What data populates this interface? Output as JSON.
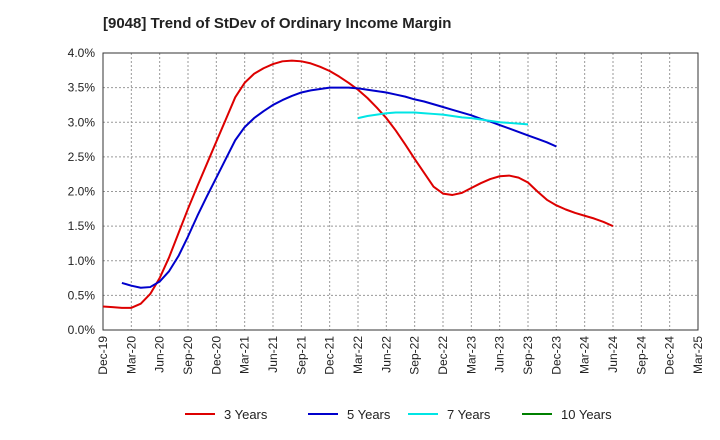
{
  "chart_data": {
    "type": "line",
    "title": "[9048]  Trend of StDev of Ordinary Income Margin",
    "xlabel": "",
    "ylabel": "",
    "ylim": [
      0,
      4.0
    ],
    "y_ticks": [
      0,
      0.5,
      1.0,
      1.5,
      2.0,
      2.5,
      3.0,
      3.5,
      4.0
    ],
    "y_tick_labels": [
      "0.0%",
      "0.5%",
      "1.0%",
      "1.5%",
      "2.0%",
      "2.5%",
      "3.0%",
      "3.5%",
      "4.0%"
    ],
    "x_tick_labels": [
      "Dec-19",
      "Mar-20",
      "Jun-20",
      "Sep-20",
      "Dec-20",
      "Mar-21",
      "Jun-21",
      "Sep-21",
      "Dec-21",
      "Mar-22",
      "Jun-22",
      "Sep-22",
      "Dec-22",
      "Mar-23",
      "Jun-23",
      "Sep-23",
      "Dec-23",
      "Mar-24",
      "Jun-24",
      "Sep-24",
      "Dec-24",
      "Mar-25"
    ],
    "grid": true,
    "legend_position": "bottom",
    "series": [
      {
        "name": "3 Years",
        "color": "#dd0000",
        "points": [
          [
            "Dec-19",
            0.34
          ],
          [
            "Jan-20",
            0.33
          ],
          [
            "Feb-20",
            0.32
          ],
          [
            "Mar-20",
            0.32
          ],
          [
            "Apr-20",
            0.38
          ],
          [
            "May-20",
            0.52
          ],
          [
            "Jun-20",
            0.75
          ],
          [
            "Jul-20",
            1.05
          ],
          [
            "Aug-20",
            1.4
          ],
          [
            "Sep-20",
            1.75
          ],
          [
            "Oct-20",
            2.08
          ],
          [
            "Nov-20",
            2.4
          ],
          [
            "Dec-20",
            2.72
          ],
          [
            "Jan-21",
            3.04
          ],
          [
            "Feb-21",
            3.36
          ],
          [
            "Mar-21",
            3.57
          ],
          [
            "Apr-21",
            3.7
          ],
          [
            "May-21",
            3.78
          ],
          [
            "Jun-21",
            3.84
          ],
          [
            "Jul-21",
            3.88
          ],
          [
            "Aug-21",
            3.89
          ],
          [
            "Sep-21",
            3.88
          ],
          [
            "Oct-21",
            3.85
          ],
          [
            "Nov-21",
            3.8
          ],
          [
            "Dec-21",
            3.74
          ],
          [
            "Jan-22",
            3.66
          ],
          [
            "Feb-22",
            3.57
          ],
          [
            "Mar-22",
            3.47
          ],
          [
            "Apr-22",
            3.35
          ],
          [
            "May-22",
            3.21
          ],
          [
            "Jun-22",
            3.06
          ],
          [
            "Jul-22",
            2.88
          ],
          [
            "Aug-22",
            2.68
          ],
          [
            "Sep-22",
            2.47
          ],
          [
            "Oct-22",
            2.27
          ],
          [
            "Nov-22",
            2.07
          ],
          [
            "Dec-22",
            1.97
          ],
          [
            "Jan-23",
            1.95
          ],
          [
            "Feb-23",
            1.98
          ],
          [
            "Mar-23",
            2.05
          ],
          [
            "Apr-23",
            2.12
          ],
          [
            "May-23",
            2.18
          ],
          [
            "Jun-23",
            2.22
          ],
          [
            "Jul-23",
            2.23
          ],
          [
            "Aug-23",
            2.2
          ],
          [
            "Sep-23",
            2.13
          ],
          [
            "Oct-23",
            2.0
          ],
          [
            "Nov-23",
            1.88
          ],
          [
            "Dec-23",
            1.8
          ],
          [
            "Jan-24",
            1.74
          ],
          [
            "Feb-24",
            1.69
          ],
          [
            "Mar-24",
            1.65
          ],
          [
            "Apr-24",
            1.61
          ],
          [
            "May-24",
            1.56
          ],
          [
            "Jun-24",
            1.5
          ]
        ]
      },
      {
        "name": "5 Years",
        "color": "#0000cc",
        "points": [
          [
            "Feb-20",
            0.68
          ],
          [
            "Mar-20",
            0.64
          ],
          [
            "Apr-20",
            0.61
          ],
          [
            "May-20",
            0.62
          ],
          [
            "Jun-20",
            0.7
          ],
          [
            "Jul-20",
            0.85
          ],
          [
            "Aug-20",
            1.07
          ],
          [
            "Sep-20",
            1.35
          ],
          [
            "Oct-20",
            1.65
          ],
          [
            "Nov-20",
            1.93
          ],
          [
            "Dec-20",
            2.2
          ],
          [
            "Jan-21",
            2.47
          ],
          [
            "Feb-21",
            2.74
          ],
          [
            "Mar-21",
            2.93
          ],
          [
            "Apr-21",
            3.06
          ],
          [
            "May-21",
            3.16
          ],
          [
            "Jun-21",
            3.25
          ],
          [
            "Jul-21",
            3.32
          ],
          [
            "Aug-21",
            3.38
          ],
          [
            "Sep-21",
            3.43
          ],
          [
            "Oct-21",
            3.46
          ],
          [
            "Nov-21",
            3.48
          ],
          [
            "Dec-21",
            3.5
          ],
          [
            "Jan-22",
            3.5
          ],
          [
            "Feb-22",
            3.5
          ],
          [
            "Mar-22",
            3.49
          ],
          [
            "Apr-22",
            3.47
          ],
          [
            "May-22",
            3.45
          ],
          [
            "Jun-22",
            3.43
          ],
          [
            "Jul-22",
            3.4
          ],
          [
            "Aug-22",
            3.37
          ],
          [
            "Sep-22",
            3.33
          ],
          [
            "Oct-22",
            3.3
          ],
          [
            "Nov-22",
            3.26
          ],
          [
            "Dec-22",
            3.22
          ],
          [
            "Jan-23",
            3.18
          ],
          [
            "Feb-23",
            3.14
          ],
          [
            "Mar-23",
            3.1
          ],
          [
            "Apr-23",
            3.05
          ],
          [
            "May-23",
            3.01
          ],
          [
            "Jun-23",
            2.96
          ],
          [
            "Jul-23",
            2.91
          ],
          [
            "Aug-23",
            2.86
          ],
          [
            "Sep-23",
            2.81
          ],
          [
            "Oct-23",
            2.76
          ],
          [
            "Nov-23",
            2.71
          ],
          [
            "Dec-23",
            2.65
          ]
        ]
      },
      {
        "name": "7 Years",
        "color": "#00e5e5",
        "points": [
          [
            "Mar-22",
            3.06
          ],
          [
            "Apr-22",
            3.09
          ],
          [
            "May-22",
            3.11
          ],
          [
            "Jun-22",
            3.13
          ],
          [
            "Jul-22",
            3.14
          ],
          [
            "Aug-22",
            3.14
          ],
          [
            "Sep-22",
            3.14
          ],
          [
            "Oct-22",
            3.13
          ],
          [
            "Nov-22",
            3.12
          ],
          [
            "Dec-22",
            3.11
          ],
          [
            "Jan-23",
            3.09
          ],
          [
            "Feb-23",
            3.07
          ],
          [
            "Mar-23",
            3.06
          ],
          [
            "Apr-23",
            3.04
          ],
          [
            "May-23",
            3.02
          ],
          [
            "Jun-23",
            3.0
          ],
          [
            "Jul-23",
            2.99
          ],
          [
            "Aug-23",
            2.98
          ],
          [
            "Sep-23",
            2.97
          ]
        ]
      },
      {
        "name": "10 Years",
        "color": "#008000",
        "points": []
      }
    ]
  }
}
